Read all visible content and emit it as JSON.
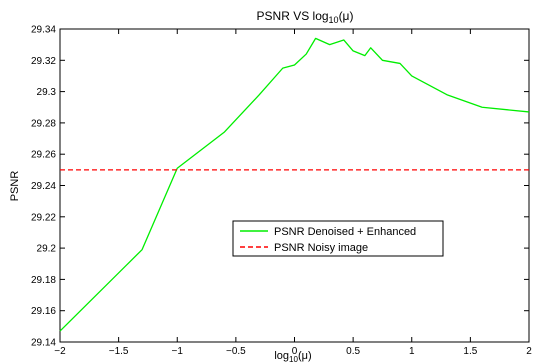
{
  "chart_data": {
    "type": "line",
    "title": "PSNR VS log10(μ)",
    "title_parts": {
      "prefix": "PSNR VS log",
      "sub": "10",
      "suffix": "(μ)"
    },
    "xlabel": "log10(μ)",
    "xlabel_parts": {
      "prefix": "log",
      "sub": "10",
      "suffix": "(μ)"
    },
    "ylabel": "PSNR",
    "xlim": [
      -2,
      2
    ],
    "ylim": [
      29.14,
      29.34
    ],
    "xticks": [
      -2,
      -1.5,
      -1,
      -0.5,
      0,
      0.5,
      1,
      1.5,
      2
    ],
    "xtick_labels": [
      "−2",
      "−1.5",
      "−1",
      "−0.5",
      "0",
      "0.5",
      "1",
      "1.5",
      "2"
    ],
    "yticks": [
      29.14,
      29.16,
      29.18,
      29.2,
      29.22,
      29.24,
      29.26,
      29.28,
      29.3,
      29.32,
      29.34
    ],
    "ytick_labels": [
      "29.14",
      "29.16",
      "29.18",
      "29.2",
      "29.22",
      "29.24",
      "29.26",
      "29.28",
      "29.3",
      "29.32",
      "29.34"
    ],
    "grid": false,
    "legend_placement": "center-right",
    "series": [
      {
        "name": "PSNR Denoised + Enhanced",
        "color": "#00ee00",
        "style": "solid",
        "x": [
          -2,
          -1.3,
          -1,
          -0.6,
          -0.3,
          -0.1,
          0,
          0.1,
          0.18,
          0.3,
          0.42,
          0.5,
          0.6,
          0.65,
          0.75,
          0.9,
          1.0,
          1.3,
          1.6,
          2.0
        ],
        "y": [
          29.147,
          29.199,
          29.251,
          29.274,
          29.298,
          29.315,
          29.317,
          29.324,
          29.334,
          29.33,
          29.333,
          29.326,
          29.323,
          29.328,
          29.32,
          29.318,
          29.31,
          29.298,
          29.29,
          29.287
        ]
      },
      {
        "name": "PSNR Noisy image",
        "color": "#ff0000",
        "style": "dashed",
        "x": [
          -2,
          2
        ],
        "y": [
          29.25,
          29.25
        ]
      }
    ]
  }
}
